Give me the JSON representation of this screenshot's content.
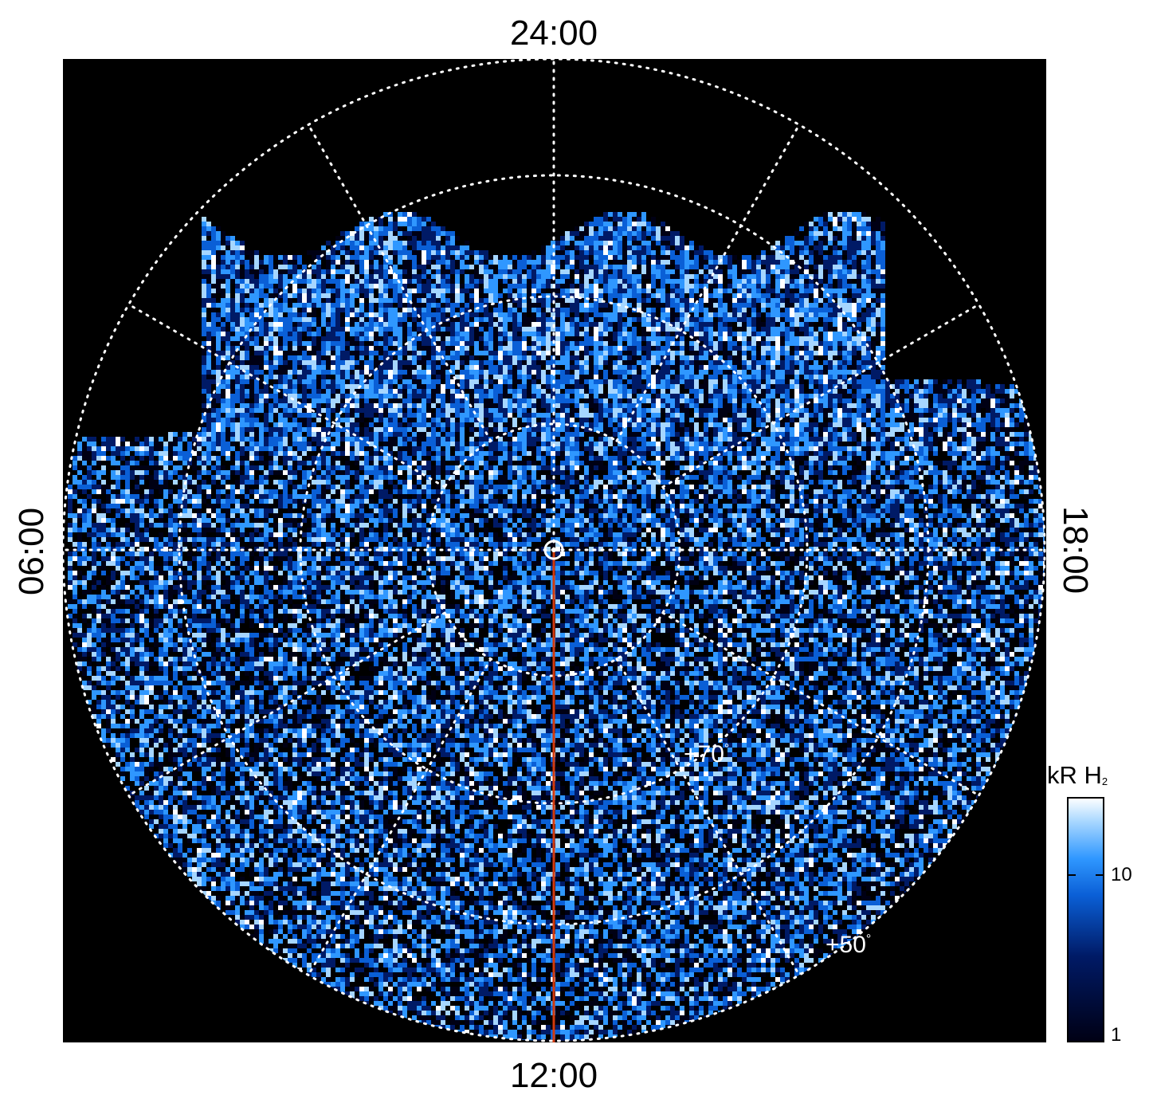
{
  "figure": {
    "local_time_labels": {
      "top": "24:00",
      "bottom": "12:00",
      "left": "06:00",
      "right": "18:00"
    },
    "latitude_labels": {
      "inner": "+70",
      "outer": "+50",
      "degree_symbol": "°"
    },
    "colorbar": {
      "title": "kR H",
      "title_subscript": "2",
      "ticks": [
        "10",
        "1"
      ],
      "scale": "log",
      "colors": [
        "#000014",
        "#001a66",
        "#0a5fd6",
        "#2f97ff",
        "#a6d6ff",
        "#ffffff"
      ]
    },
    "colors": {
      "background": "#000000",
      "grid": "#ffffff",
      "meridian_line": "#d23a0d"
    }
  }
}
